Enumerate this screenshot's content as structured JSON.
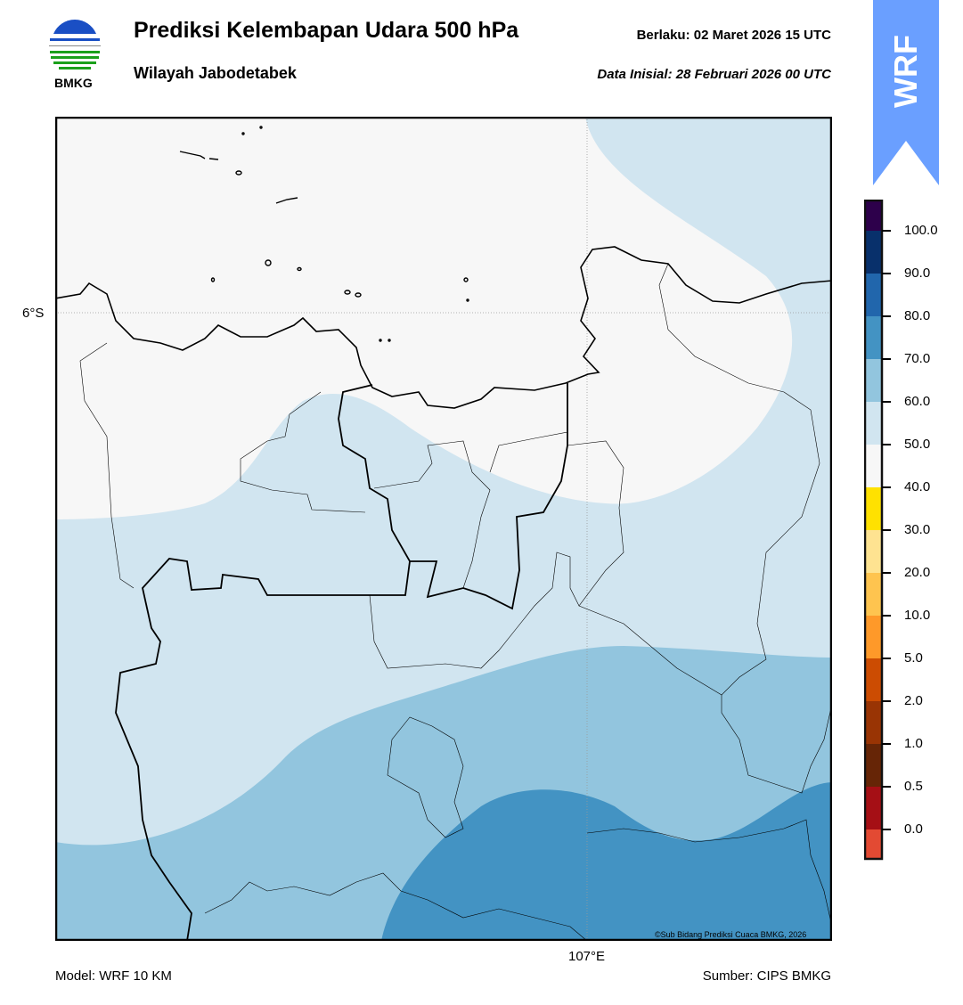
{
  "header": {
    "title": "Prediksi Kelembapan Udara 500 hPa",
    "subtitle": "Wilayah Jabodetabek",
    "valid_time": "Berlaku:  02 Maret 2026 15 UTC",
    "initial_data": "Data Inisial:  28 Februari 2026 00 UTC",
    "logo_text": "BMKG"
  },
  "badge": {
    "text": "WRF",
    "color": "#6a9fff"
  },
  "map": {
    "lat_label": "6°S",
    "lon_label": "107°E",
    "copyright": "©Sub Bidang Prediksi Cuaca BMKG, 2026",
    "fill_colors": {
      "40-50": "#f7f7f7",
      "50-60": "#d1e5f0",
      "60-70": "#92c5de",
      "70-80": "#4393c3"
    }
  },
  "colorbar": {
    "ticks": [
      "100.0",
      "90.0",
      "80.0",
      "70.0",
      "60.0",
      "50.0",
      "40.0",
      "30.0",
      "20.0",
      "10.0",
      "5.0",
      "2.0",
      "1.0",
      "0.5",
      "0.0"
    ],
    "colors": [
      "#2d004b",
      "#08306b",
      "#2166ac",
      "#4393c3",
      "#92c5de",
      "#d1e5f0",
      "#f7f7f7",
      "#ffe100",
      "#fee391",
      "#fec44f",
      "#fe9929",
      "#cc4c02",
      "#993404",
      "#662506",
      "#a50f15",
      "#e34a33"
    ]
  },
  "footer": {
    "model": "Model: WRF 10 KM",
    "source": "Sumber: CIPS BMKG"
  }
}
